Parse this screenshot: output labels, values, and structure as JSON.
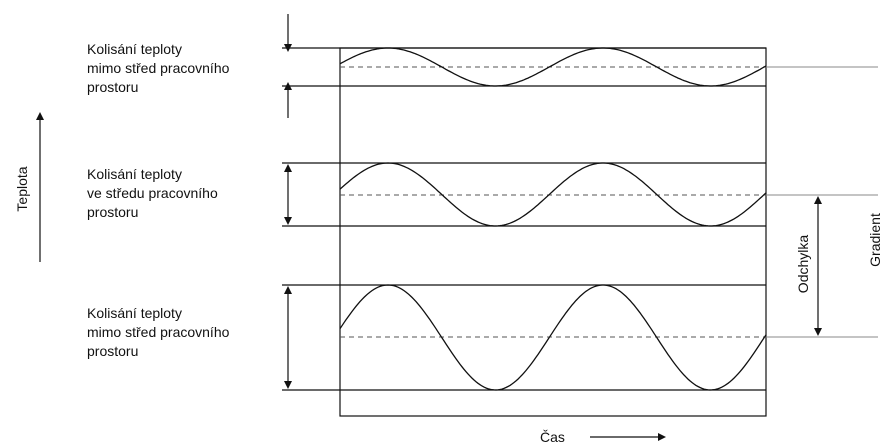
{
  "panels": [
    {
      "label_lines": [
        "Kolisání teploty",
        "mimo střed pracovního",
        "prostoru"
      ],
      "amplitude_fraction": 0.55
    },
    {
      "label_lines": [
        "Kolisání teploty",
        "ve středu pracovního",
        "prostoru"
      ],
      "amplitude_fraction": 0.85
    },
    {
      "label_lines": [
        "Kolisání teploty",
        "mimo střed pracovního",
        "prostoru"
      ],
      "amplitude_fraction": 0.95
    }
  ],
  "axes": {
    "y_label": "Teplota",
    "x_label": "Čas"
  },
  "right_labels": {
    "deviation": "Odchylka",
    "gradient": "Gradient"
  },
  "colors": {
    "line": "#111111",
    "dashed": "#555555",
    "gray_line": "#888888"
  }
}
